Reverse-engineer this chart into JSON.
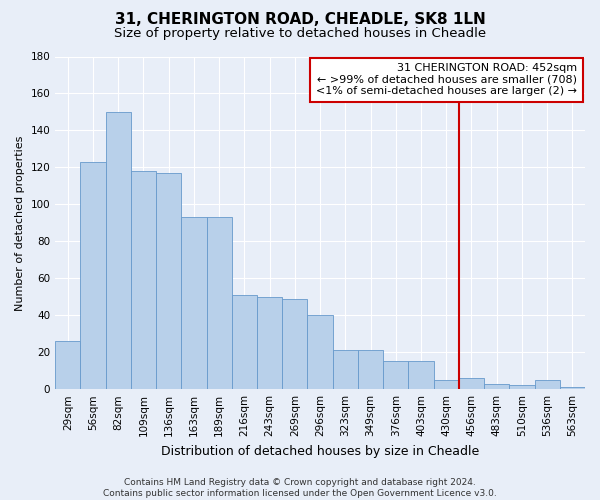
{
  "title": "31, CHERINGTON ROAD, CHEADLE, SK8 1LN",
  "subtitle": "Size of property relative to detached houses in Cheadle",
  "xlabel": "Distribution of detached houses by size in Cheadle",
  "ylabel": "Number of detached properties",
  "categories": [
    "29sqm",
    "56sqm",
    "82sqm",
    "109sqm",
    "136sqm",
    "163sqm",
    "189sqm",
    "216sqm",
    "243sqm",
    "269sqm",
    "296sqm",
    "323sqm",
    "349sqm",
    "376sqm",
    "403sqm",
    "430sqm",
    "456sqm",
    "483sqm",
    "510sqm",
    "536sqm",
    "563sqm"
  ],
  "values": [
    26,
    123,
    150,
    118,
    117,
    93,
    93,
    51,
    50,
    49,
    40,
    21,
    21,
    15,
    15,
    5,
    6,
    3,
    2,
    5,
    1
  ],
  "bar_color": "#b8d0ea",
  "bar_edge_color": "#6699cc",
  "background_color": "#e8eef8",
  "grid_color": "#ffffff",
  "vline_color": "#cc0000",
  "annotation_text": "31 CHERINGTON ROAD: 452sqm\n← >99% of detached houses are smaller (708)\n<1% of semi-detached houses are larger (2) →",
  "annotation_box_color": "#cc0000",
  "ylim": [
    0,
    180
  ],
  "yticks": [
    0,
    20,
    40,
    60,
    80,
    100,
    120,
    140,
    160,
    180
  ],
  "footer": "Contains HM Land Registry data © Crown copyright and database right 2024.\nContains public sector information licensed under the Open Government Licence v3.0.",
  "title_fontsize": 11,
  "subtitle_fontsize": 9.5,
  "xlabel_fontsize": 9,
  "ylabel_fontsize": 8,
  "tick_fontsize": 7.5,
  "annotation_fontsize": 8,
  "footer_fontsize": 6.5
}
